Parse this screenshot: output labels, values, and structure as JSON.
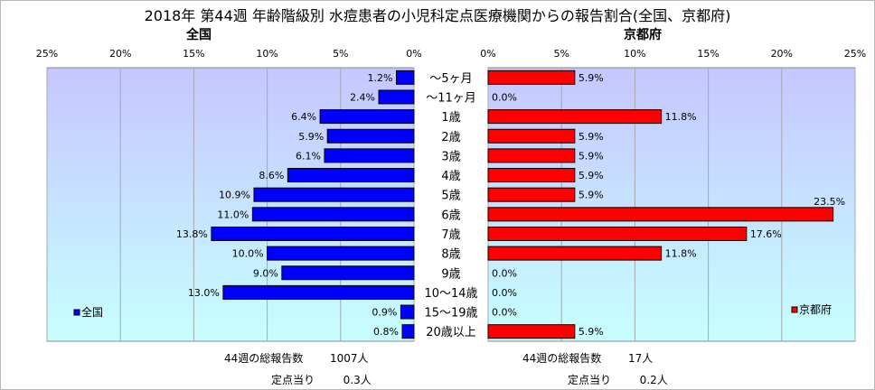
{
  "title": "2018年 第44週 年齢階級別 水痘患者の小児科定点医療機関からの報告割合(全国、京都府)",
  "chart_data": [
    {
      "type": "bar",
      "orientation": "horizontal",
      "direction": "right-to-left",
      "panel_title": "全国",
      "categories": [
        "～5ヶ月",
        "～11ヶ月",
        "1歳",
        "2歳",
        "3歳",
        "4歳",
        "5歳",
        "6歳",
        "7歳",
        "8歳",
        "9歳",
        "10～14歳",
        "15～19歳",
        "20歳以上"
      ],
      "values": [
        1.2,
        2.4,
        6.4,
        5.9,
        6.1,
        8.6,
        10.9,
        11.0,
        13.8,
        10.0,
        9.0,
        13.0,
        0.9,
        0.8
      ],
      "value_labels": [
        "1.2%",
        "2.4%",
        "6.4%",
        "5.9%",
        "6.1%",
        "8.6%",
        "10.9%",
        "11.0%",
        "13.8%",
        "10.0%",
        "9.0%",
        "13.0%",
        "0.9%",
        "0.8%"
      ],
      "xlim": [
        0,
        25
      ],
      "ticks": [
        "25%",
        "20%",
        "15%",
        "10%",
        "5%",
        "0%"
      ],
      "legend": "全国",
      "legend_position": "bottom-left",
      "bar_color": "#0000ff",
      "grid": true
    },
    {
      "type": "bar",
      "orientation": "horizontal",
      "direction": "left-to-right",
      "panel_title": "京都府",
      "categories": [
        "～5ヶ月",
        "～11ヶ月",
        "1歳",
        "2歳",
        "3歳",
        "4歳",
        "5歳",
        "6歳",
        "7歳",
        "8歳",
        "9歳",
        "10～14歳",
        "15～19歳",
        "20歳以上"
      ],
      "values": [
        5.9,
        0.0,
        11.8,
        5.9,
        5.9,
        5.9,
        5.9,
        23.5,
        17.6,
        11.8,
        0.0,
        0.0,
        0.0,
        5.9
      ],
      "value_labels": [
        "5.9%",
        "0.0%",
        "11.8%",
        "5.9%",
        "5.9%",
        "5.9%",
        "5.9%",
        "23.5%",
        "17.6%",
        "11.8%",
        "0.0%",
        "0.0%",
        "0.0%",
        "5.9%"
      ],
      "xlim": [
        0,
        25
      ],
      "ticks": [
        "0%",
        "5%",
        "10%",
        "15%",
        "20%",
        "25%"
      ],
      "legend": "京都府",
      "legend_position": "bottom-right",
      "bar_color": "#ff0000",
      "grid": true
    }
  ],
  "footer": {
    "left": {
      "reports_label": "44週の総報告数",
      "reports_value": "1007人",
      "per_site_label": "定点当り",
      "per_site_value": "0.3人"
    },
    "right": {
      "reports_label": "44週の総報告数",
      "reports_value": "17人",
      "per_site_label": "定点当り",
      "per_site_value": "0.2人"
    }
  },
  "colors": {
    "plot_bg_top": "#c6c6ff",
    "plot_bg_bottom": "#c6ffff",
    "left_bar": "#0000ff",
    "right_bar": "#ff0000",
    "grid": "#a8a8a8"
  }
}
